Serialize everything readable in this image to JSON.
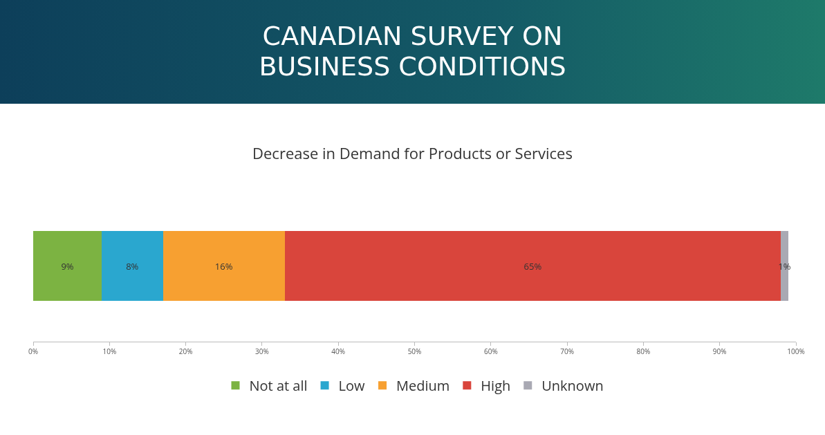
{
  "chart_data": {
    "type": "bar",
    "orientation": "horizontal",
    "stacked": true,
    "title": "CANADIAN SURVEY ON BUSINESS CONDITIONS",
    "subtitle": "Decrease in Demand for Products or Services",
    "categories": [
      null
    ],
    "series": [
      {
        "name": "Not at all",
        "color": "#7cb342",
        "values": [
          9
        ],
        "value_labels": [
          "9%"
        ]
      },
      {
        "name": "Low",
        "color": "#2aa7cf",
        "values": [
          8
        ],
        "value_labels": [
          "8%"
        ]
      },
      {
        "name": "Medium",
        "color": "#f7a031",
        "values": [
          16
        ],
        "value_labels": [
          "16%"
        ]
      },
      {
        "name": "High",
        "color": "#d9453c",
        "values": [
          65
        ],
        "value_labels": [
          "65%"
        ]
      },
      {
        "name": "Unknown",
        "color": "#a9a9b3",
        "values": [
          1
        ],
        "value_labels": [
          "1%"
        ]
      }
    ],
    "xlim": [
      0,
      100
    ],
    "xticks": [
      {
        "value": 0,
        "label": "0%"
      },
      {
        "value": 10,
        "label": "10%"
      },
      {
        "value": 20,
        "label": "20%"
      },
      {
        "value": 30,
        "label": "30%"
      },
      {
        "value": 40,
        "label": "40%"
      },
      {
        "value": 50,
        "label": "50%"
      },
      {
        "value": 60,
        "label": "60%"
      },
      {
        "value": 70,
        "label": "70%"
      },
      {
        "value": 80,
        "label": "80%"
      },
      {
        "value": 90,
        "label": "90%"
      },
      {
        "value": 100,
        "label": "100%"
      }
    ],
    "tick_labels": "x",
    "grid": false,
    "legend": "bottom"
  }
}
